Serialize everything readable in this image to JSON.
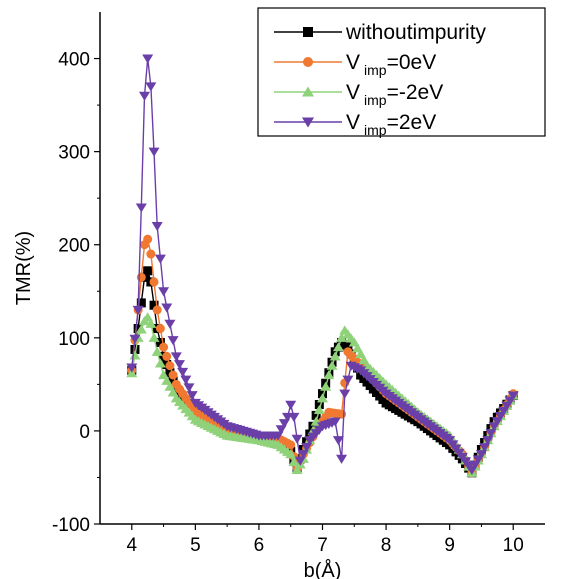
{
  "chart_data": {
    "type": "line",
    "xlabel": "b(Å)",
    "ylabel": "TMR(%)",
    "xlim": [
      3.5,
      10.5
    ],
    "ylim": [
      -100,
      450
    ],
    "xticks": [
      "4",
      "5",
      "6",
      "7",
      "8",
      "9",
      "10"
    ],
    "yticks": [
      "-100",
      "0",
      "100",
      "200",
      "300",
      "400"
    ],
    "grid": false,
    "legend_position": "top-right",
    "series": [
      {
        "name": "withoutimpurity",
        "legend": {
          "main": "withoutimpurity",
          "sub": "",
          "suffix": ""
        },
        "marker": "square",
        "color": "#000000",
        "points": [
          [
            4.0,
            65
          ],
          [
            4.1,
            110
          ],
          [
            4.2,
            165
          ],
          [
            4.25,
            172
          ],
          [
            4.3,
            160
          ],
          [
            4.4,
            110
          ],
          [
            4.5,
            80
          ],
          [
            4.7,
            45
          ],
          [
            5.0,
            20
          ],
          [
            5.5,
            0
          ],
          [
            6.0,
            -8
          ],
          [
            6.3,
            -12
          ],
          [
            6.5,
            -22
          ],
          [
            6.6,
            -40
          ],
          [
            6.7,
            -20
          ],
          [
            6.85,
            5
          ],
          [
            7.0,
            40
          ],
          [
            7.2,
            85
          ],
          [
            7.3,
            95
          ],
          [
            7.4,
            90
          ],
          [
            7.6,
            60
          ],
          [
            8.0,
            30
          ],
          [
            8.5,
            10
          ],
          [
            9.0,
            -15
          ],
          [
            9.2,
            -30
          ],
          [
            9.35,
            -45
          ],
          [
            9.5,
            -20
          ],
          [
            9.7,
            10
          ],
          [
            10.0,
            38
          ]
        ]
      },
      {
        "name": "V imp=0eV",
        "legend": {
          "main": "V",
          "sub": "imp",
          "suffix": "=0eV"
        },
        "marker": "circle",
        "color": "#F07830",
        "points": [
          [
            4.0,
            65
          ],
          [
            4.1,
            130
          ],
          [
            4.2,
            200
          ],
          [
            4.25,
            206
          ],
          [
            4.3,
            190
          ],
          [
            4.4,
            130
          ],
          [
            4.5,
            90
          ],
          [
            4.7,
            50
          ],
          [
            5.0,
            20
          ],
          [
            5.5,
            2
          ],
          [
            6.0,
            -5
          ],
          [
            6.3,
            -8
          ],
          [
            6.5,
            -15
          ],
          [
            6.6,
            -40
          ],
          [
            6.7,
            -25
          ],
          [
            6.9,
            0
          ],
          [
            7.1,
            20
          ],
          [
            7.3,
            18
          ],
          [
            7.4,
            85
          ],
          [
            7.6,
            70
          ],
          [
            8.0,
            40
          ],
          [
            8.5,
            15
          ],
          [
            9.0,
            -10
          ],
          [
            9.2,
            -25
          ],
          [
            9.35,
            -45
          ],
          [
            9.5,
            -25
          ],
          [
            9.7,
            5
          ],
          [
            10.0,
            40
          ]
        ]
      },
      {
        "name": "V imp=-2eV",
        "legend": {
          "main": "V",
          "sub": "imp",
          "suffix": "=-2eV"
        },
        "marker": "triangle-up",
        "color": "#8FD27A",
        "points": [
          [
            4.0,
            62
          ],
          [
            4.1,
            100
          ],
          [
            4.2,
            118
          ],
          [
            4.25,
            122
          ],
          [
            4.3,
            115
          ],
          [
            4.4,
            85
          ],
          [
            4.5,
            60
          ],
          [
            4.7,
            35
          ],
          [
            5.0,
            12
          ],
          [
            5.5,
            -5
          ],
          [
            6.0,
            -10
          ],
          [
            6.3,
            -15
          ],
          [
            6.5,
            -25
          ],
          [
            6.6,
            -42
          ],
          [
            6.7,
            -30
          ],
          [
            6.9,
            10
          ],
          [
            7.1,
            60
          ],
          [
            7.3,
            100
          ],
          [
            7.35,
            108
          ],
          [
            7.5,
            95
          ],
          [
            7.7,
            70
          ],
          [
            8.0,
            50
          ],
          [
            8.5,
            20
          ],
          [
            9.0,
            -5
          ],
          [
            9.2,
            -25
          ],
          [
            9.35,
            -45
          ],
          [
            9.5,
            -25
          ],
          [
            9.7,
            5
          ],
          [
            10.0,
            38
          ]
        ]
      },
      {
        "name": "V imp=2eV",
        "legend": {
          "main": "V",
          "sub": "imp",
          "suffix": "=2eV"
        },
        "marker": "triangle-down",
        "color": "#6A3FA8",
        "points": [
          [
            4.0,
            68
          ],
          [
            4.1,
            130
          ],
          [
            4.15,
            240
          ],
          [
            4.2,
            360
          ],
          [
            4.25,
            400
          ],
          [
            4.3,
            370
          ],
          [
            4.35,
            300
          ],
          [
            4.4,
            220
          ],
          [
            4.5,
            150
          ],
          [
            4.7,
            80
          ],
          [
            5.0,
            30
          ],
          [
            5.5,
            5
          ],
          [
            6.0,
            -5
          ],
          [
            6.3,
            -5
          ],
          [
            6.45,
            15
          ],
          [
            6.5,
            28
          ],
          [
            6.55,
            15
          ],
          [
            6.65,
            -32
          ],
          [
            6.8,
            -10
          ],
          [
            7.0,
            5
          ],
          [
            7.2,
            10
          ],
          [
            7.3,
            -30
          ],
          [
            7.35,
            40
          ],
          [
            7.45,
            70
          ],
          [
            7.6,
            65
          ],
          [
            8.0,
            40
          ],
          [
            8.5,
            15
          ],
          [
            9.0,
            -10
          ],
          [
            9.2,
            -28
          ],
          [
            9.35,
            -42
          ],
          [
            9.5,
            -25
          ],
          [
            9.7,
            5
          ],
          [
            10.0,
            38
          ]
        ]
      }
    ]
  }
}
